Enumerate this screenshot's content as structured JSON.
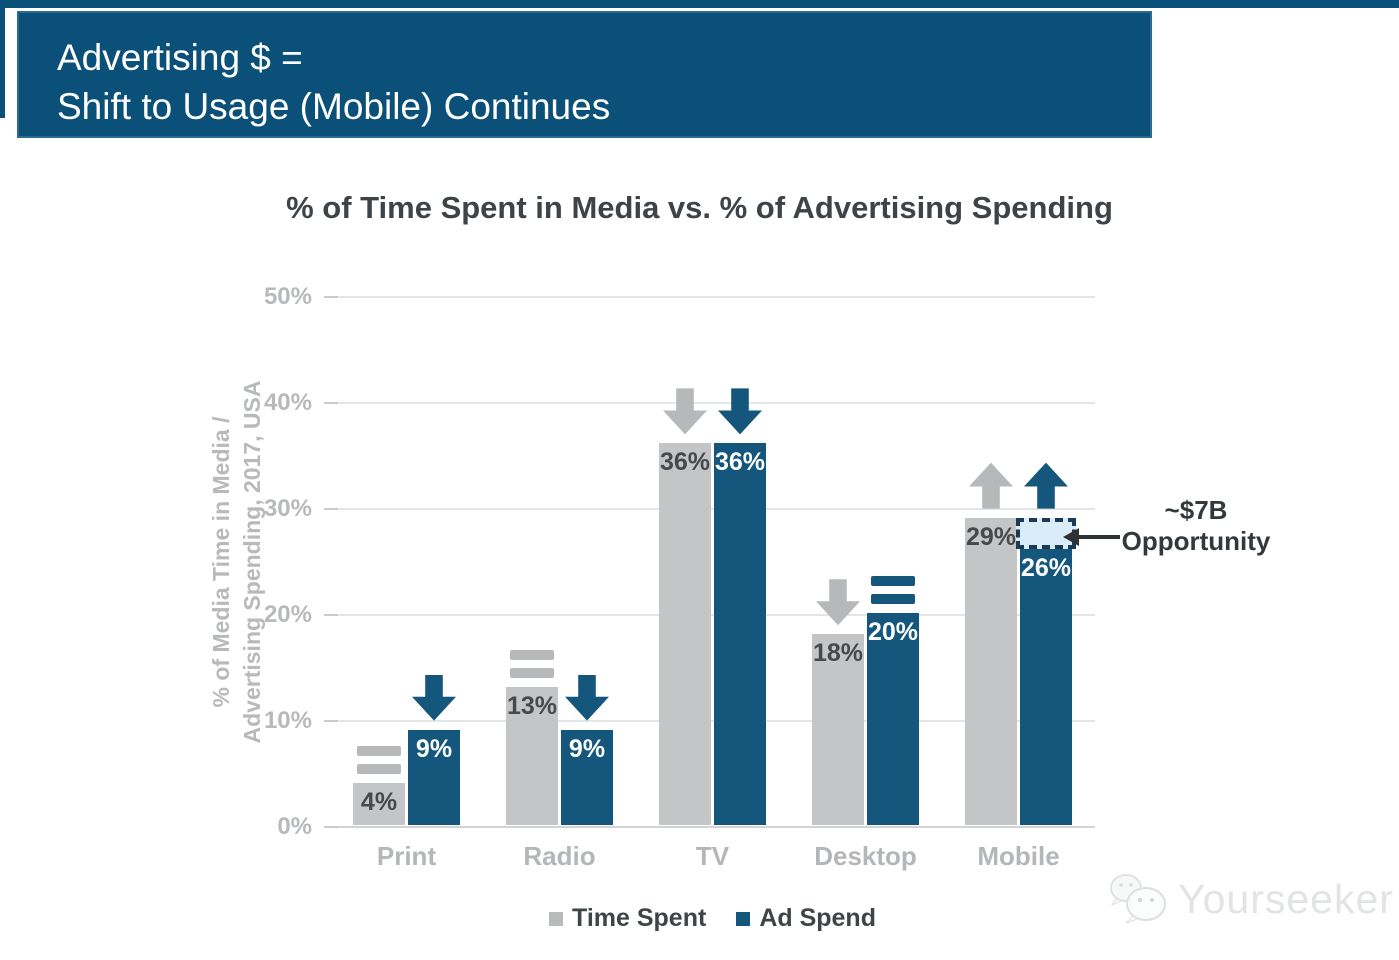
{
  "banner": {
    "line1": "Advertising $ =",
    "line2": "Shift to Usage (Mobile) Continues"
  },
  "chart_data": {
    "type": "bar",
    "title": "% of Time Spent in Media vs. % of Advertising Spending",
    "ylabel": [
      "% of Media Time in Media /",
      "Advertising Spending, 2017, USA"
    ],
    "ylim": [
      0,
      50
    ],
    "ytick_values": [
      0,
      10,
      20,
      30,
      40,
      50
    ],
    "ytick_labels": [
      "0%",
      "10%",
      "20%",
      "30%",
      "40%",
      "50%"
    ],
    "grid": true,
    "categories": [
      "Print",
      "Radio",
      "TV",
      "Desktop",
      "Mobile"
    ],
    "series": [
      {
        "name": "Time Spent",
        "color": "#c4c5c7",
        "icon_color": "#b6b8ba",
        "label_color": "#45494c",
        "values": [
          4,
          13,
          36,
          18,
          29
        ],
        "value_labels": [
          "4%",
          "13%",
          "36%",
          "18%",
          "29%"
        ],
        "trends": [
          "flat",
          "flat",
          "down",
          "down",
          "up"
        ]
      },
      {
        "name": "Ad Spend",
        "color": "#14567c",
        "icon_color": "#14567c",
        "label_color": "#ffffff",
        "values": [
          9,
          9,
          36,
          20,
          26
        ],
        "value_labels": [
          "9%",
          "9%",
          "36%",
          "20%",
          "26%"
        ],
        "trends": [
          "down",
          "down",
          "down",
          "flat",
          "up"
        ]
      }
    ],
    "legend": [
      {
        "label": "Time Spent",
        "color": "#b9babc"
      },
      {
        "label": "Ad Spend",
        "color": "#14567c"
      }
    ],
    "legend_position": "bottom-center",
    "annotation": {
      "text_line1": "~$7B",
      "text_line2": "Opportunity",
      "target_category": "Mobile",
      "target_series": "Ad Spend",
      "gap_from": 26,
      "gap_to": 29,
      "box_fill": "#d9ecf8",
      "box_border": "#1b3a55"
    }
  },
  "watermark": {
    "label": "Yourseeker",
    "icon": "chat-bubbles-icon"
  },
  "colors": {
    "banner_blue": "#0b5078",
    "bar_blue": "#14567c",
    "bar_gray": "#c4c5c7",
    "grid_line": "#e4e5e6",
    "tick_text": "#b7b9bb",
    "title_text": "#3e4347",
    "annotation_arrow": "#2f3234"
  }
}
